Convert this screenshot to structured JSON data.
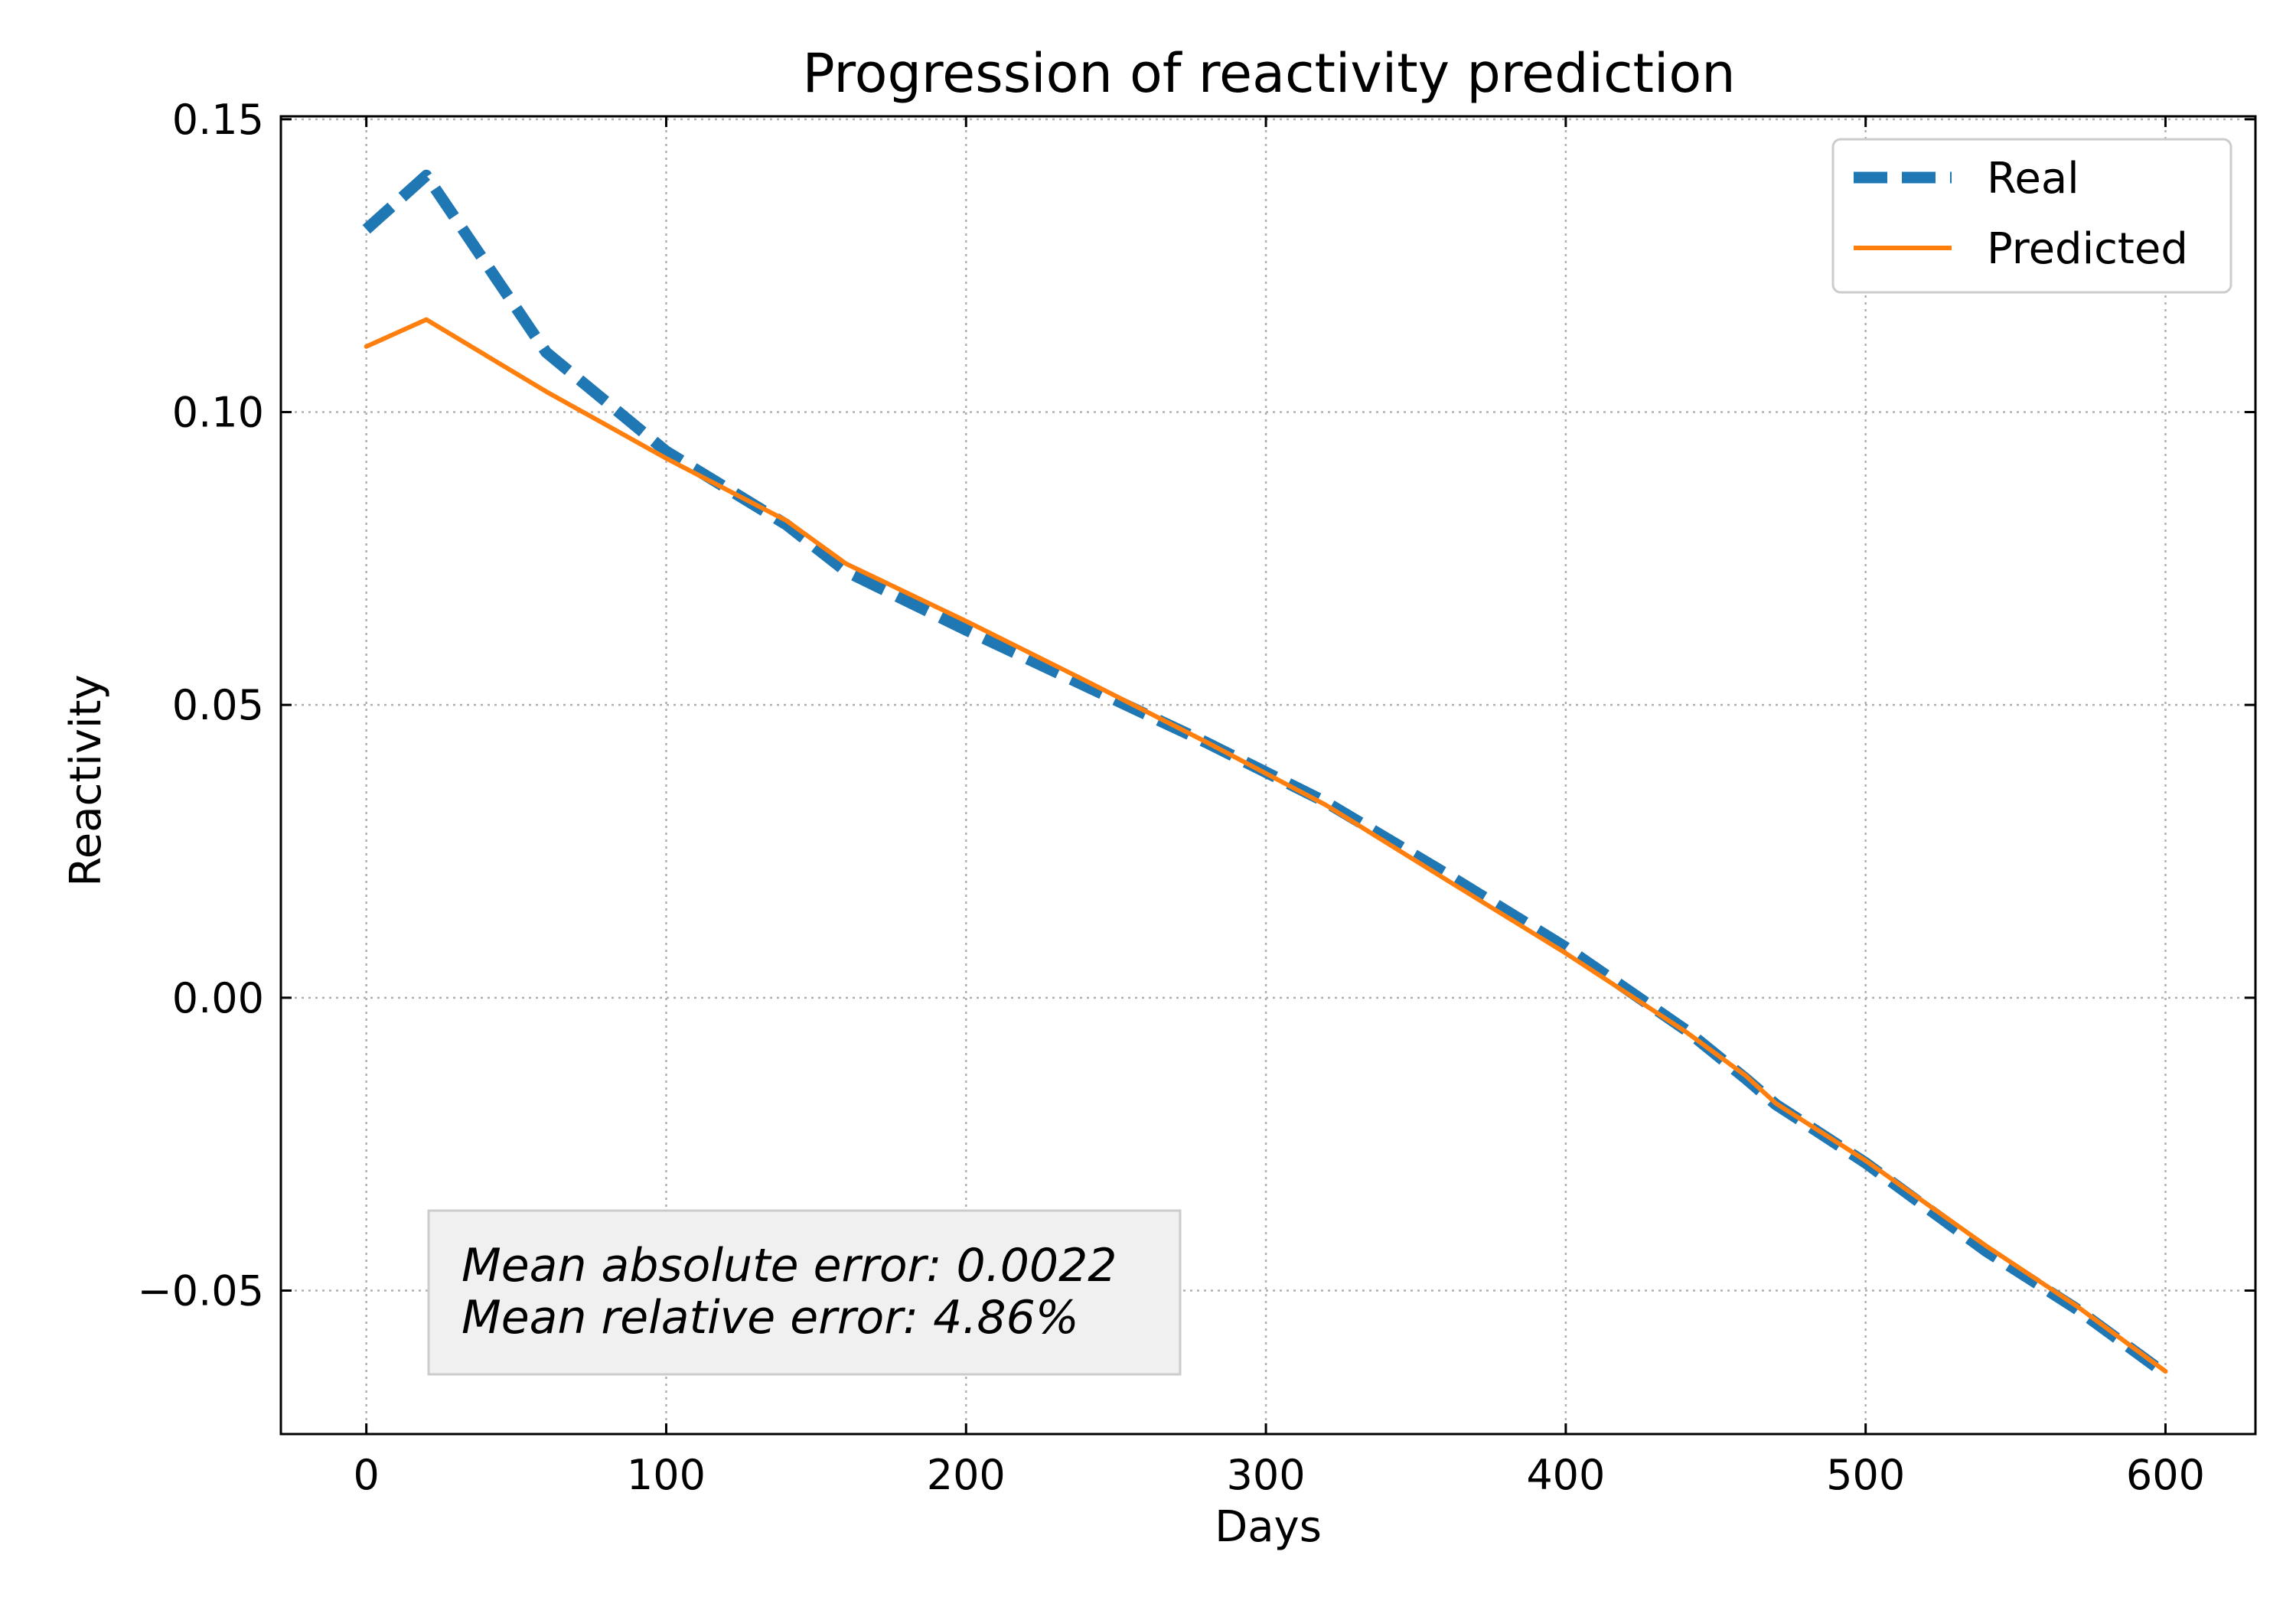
{
  "chart_data": {
    "type": "line",
    "title": "Progression of reactivity prediction",
    "xlabel": "Days",
    "ylabel": "Reactivity",
    "xlim": [
      -28.5,
      630
    ],
    "ylim": [
      -0.0745,
      0.1505
    ],
    "xticks": [
      0,
      100,
      200,
      300,
      400,
      500,
      600
    ],
    "xtick_labels": [
      "0",
      "100",
      "200",
      "300",
      "400",
      "500",
      "600"
    ],
    "yticks": [
      -0.05,
      0,
      0.05,
      0.1,
      0.15
    ],
    "ytick_labels": [
      "−0.05",
      "0.00",
      "0.05",
      "0.10",
      "0.15"
    ],
    "grid": true,
    "legend_position": "top-right",
    "series": [
      {
        "name": "Real",
        "color": "#1f77b4",
        "style": "dashed",
        "x": [
          0,
          20,
          60,
          100,
          140,
          160,
          200,
          240,
          280,
          320,
          360,
          400,
          440,
          460,
          470,
          500,
          540,
          570,
          600
        ],
        "y": [
          0.1312,
          0.1404,
          0.1102,
          0.0933,
          0.0808,
          0.0728,
          0.0628,
          0.0532,
          0.0436,
          0.0334,
          0.0212,
          0.0086,
          -0.0055,
          -0.0138,
          -0.0182,
          -0.0282,
          -0.0432,
          -0.053,
          -0.0642
        ]
      },
      {
        "name": "Predicted",
        "color": "#ff7f0e",
        "style": "solid",
        "x": [
          0,
          20,
          60,
          100,
          140,
          160,
          200,
          240,
          280,
          320,
          360,
          400,
          440,
          460,
          470,
          500,
          540,
          570,
          600
        ],
        "y": [
          0.1112,
          0.1158,
          0.1035,
          0.0921,
          0.0815,
          0.0741,
          0.0643,
          0.0541,
          0.0437,
          0.0329,
          0.0202,
          0.0076,
          -0.0058,
          -0.0133,
          -0.018,
          -0.0278,
          -0.0423,
          -0.0525,
          -0.0638
        ]
      }
    ],
    "annotations": [
      "Mean absolute error: 0.0022",
      "Mean relative error: 4.86%"
    ]
  },
  "colors": {
    "grid": "#b0b0b0",
    "annotation_box_fill": "#f0f0f0",
    "annotation_box_stroke": "#cccccc",
    "legend_frame": "#cccccc"
  }
}
